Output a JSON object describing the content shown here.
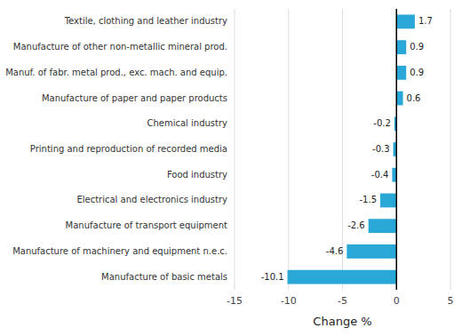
{
  "chart_data": {
    "type": "bar",
    "orientation": "horizontal",
    "categories": [
      "Manufacture of basic metals",
      "Manufacture of machinery and equipment n.e.c.",
      "Manufacture of transport equipment",
      "Electrical and electronics industry",
      "Food industry",
      "Printing and reproduction of recorded media",
      "Chemical industry",
      "Manufacture of paper and paper products",
      "Manuf. of fabr. metal prod., exc. mach. and equip.",
      "Manufacture of other non-metallic mineral prod.",
      "Textile, clothing and leather industry"
    ],
    "values": [
      -10.1,
      -4.6,
      -2.6,
      -1.5,
      -0.4,
      -0.3,
      -0.2,
      0.6,
      0.9,
      0.9,
      1.7
    ],
    "color": "#29a8d8",
    "xlabel": "Change %",
    "xlim": [
      -15,
      5
    ],
    "xticks": [
      -15,
      -10,
      -5,
      0,
      5
    ],
    "grid": true,
    "data_labels": true
  }
}
